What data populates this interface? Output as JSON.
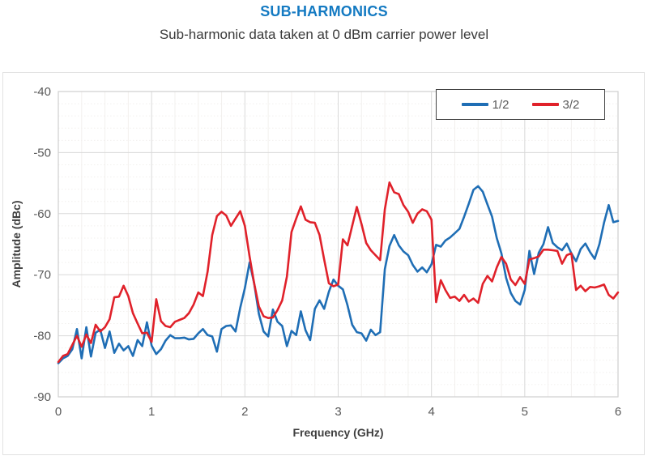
{
  "header": {
    "title": "SUB-HARMONICS",
    "subtitle": "Sub-harmonic data taken at 0 dBm carrier power level",
    "title_color": "#147ac2",
    "subtitle_color": "#3a3a3a"
  },
  "colors": {
    "accent_blue": "#1f6eb5",
    "accent_red": "#e0212a",
    "major_grid": "#d9d9d9",
    "minor_grid": "#f2f0ee",
    "plot_border": "#cfcfcf",
    "tick_label": "#595959",
    "axis_title": "#3f3f3f",
    "legend_border": "#424242",
    "card_border": "#e2e2e2"
  },
  "chart_data": {
    "type": "line",
    "title": "SUB-HARMONICS",
    "subtitle": "Sub-harmonic data taken at 0 dBm carrier power level",
    "xlabel": "Frequency (GHz)",
    "ylabel": "Amplitude (dBc)",
    "xlim": [
      0,
      6
    ],
    "ylim": [
      -90,
      -40
    ],
    "x_ticks": [
      0,
      1,
      2,
      3,
      4,
      5,
      6
    ],
    "y_ticks": [
      -40,
      -50,
      -60,
      -70,
      -80,
      -90
    ],
    "minor_x_step": 0.25,
    "minor_y_step": 2,
    "grid": "on",
    "legend_position": "top-right",
    "x_start": 0,
    "x_step": 0.05,
    "series": [
      {
        "name": "1/2",
        "color": "#1f6eb5",
        "values": [
          -84.5,
          -83.7,
          -83.3,
          -82.2,
          -78.9,
          -83.7,
          -78.6,
          -83.4,
          -79.5,
          -79.0,
          -82.0,
          -79.3,
          -82.8,
          -81.3,
          -82.4,
          -81.7,
          -83.3,
          -80.7,
          -81.7,
          -77.8,
          -81.6,
          -83.0,
          -82.2,
          -80.8,
          -79.9,
          -80.4,
          -80.4,
          -80.3,
          -80.6,
          -80.5,
          -79.6,
          -78.9,
          -79.9,
          -80.1,
          -82.6,
          -78.9,
          -78.4,
          -78.3,
          -79.3,
          -75.4,
          -72.2,
          -68.0,
          -71.5,
          -76.4,
          -79.3,
          -80.1,
          -75.7,
          -77.7,
          -78.4,
          -81.7,
          -79.2,
          -79.9,
          -76.0,
          -79.1,
          -80.7,
          -75.6,
          -74.2,
          -75.6,
          -72.8,
          -70.8,
          -71.8,
          -72.4,
          -75.0,
          -78.2,
          -79.4,
          -79.6,
          -80.8,
          -79.0,
          -79.9,
          -79.4,
          -69.1,
          -65.3,
          -63.5,
          -65.2,
          -66.2,
          -66.8,
          -68.4,
          -69.5,
          -68.8,
          -69.6,
          -68.3,
          -65.1,
          -65.4,
          -64.4,
          -63.9,
          -63.2,
          -62.5,
          -60.5,
          -58.4,
          -56.1,
          -55.5,
          -56.4,
          -58.5,
          -60.5,
          -64.0,
          -66.5,
          -70.5,
          -73.0,
          -74.3,
          -74.9,
          -72.5,
          -66.1,
          -69.9,
          -66.4,
          -65.0,
          -62.2,
          -64.8,
          -65.5,
          -66.0,
          -64.9,
          -66.5,
          -67.8,
          -65.8,
          -64.9,
          -66.3,
          -67.4,
          -65.0,
          -61.5,
          -58.6,
          -61.4,
          -61.2
        ]
      },
      {
        "name": "3/2",
        "color": "#e0212a",
        "values": [
          -84.3,
          -83.3,
          -83.0,
          -81.5,
          -80.0,
          -81.8,
          -79.8,
          -81.2,
          -78.2,
          -79.3,
          -78.6,
          -77.3,
          -73.7,
          -73.6,
          -71.8,
          -73.5,
          -76.3,
          -78.0,
          -79.6,
          -79.5,
          -81.0,
          -74.0,
          -77.6,
          -78.4,
          -78.6,
          -77.7,
          -77.4,
          -77.1,
          -76.3,
          -74.9,
          -72.9,
          -73.5,
          -69.5,
          -63.5,
          -60.4,
          -59.7,
          -60.3,
          -62.0,
          -60.8,
          -59.6,
          -62.0,
          -67.0,
          -71.5,
          -75.2,
          -76.8,
          -77.1,
          -77.0,
          -75.8,
          -74.2,
          -70.3,
          -63.0,
          -60.8,
          -58.8,
          -61.0,
          -61.4,
          -61.5,
          -63.5,
          -67.5,
          -71.4,
          -71.9,
          -71.6,
          -64.2,
          -65.2,
          -62.0,
          -58.9,
          -61.7,
          -64.8,
          -66.0,
          -66.8,
          -67.6,
          -59.3,
          -54.9,
          -56.5,
          -56.8,
          -58.6,
          -59.7,
          -61.5,
          -60.0,
          -59.3,
          -59.6,
          -61.0,
          -74.5,
          -70.9,
          -72.5,
          -73.8,
          -73.6,
          -74.3,
          -73.3,
          -74.4,
          -73.9,
          -74.6,
          -71.5,
          -70.2,
          -71.1,
          -68.8,
          -67.1,
          -68.2,
          -70.8,
          -71.7,
          -70.4,
          -71.5,
          -67.5,
          -67.3,
          -67.0,
          -65.9,
          -65.9,
          -66.0,
          -66.1,
          -68.2,
          -66.8,
          -66.5,
          -72.5,
          -71.8,
          -72.7,
          -72.0,
          -72.1,
          -71.9,
          -71.6,
          -73.3,
          -73.9,
          -72.9
        ]
      }
    ]
  }
}
